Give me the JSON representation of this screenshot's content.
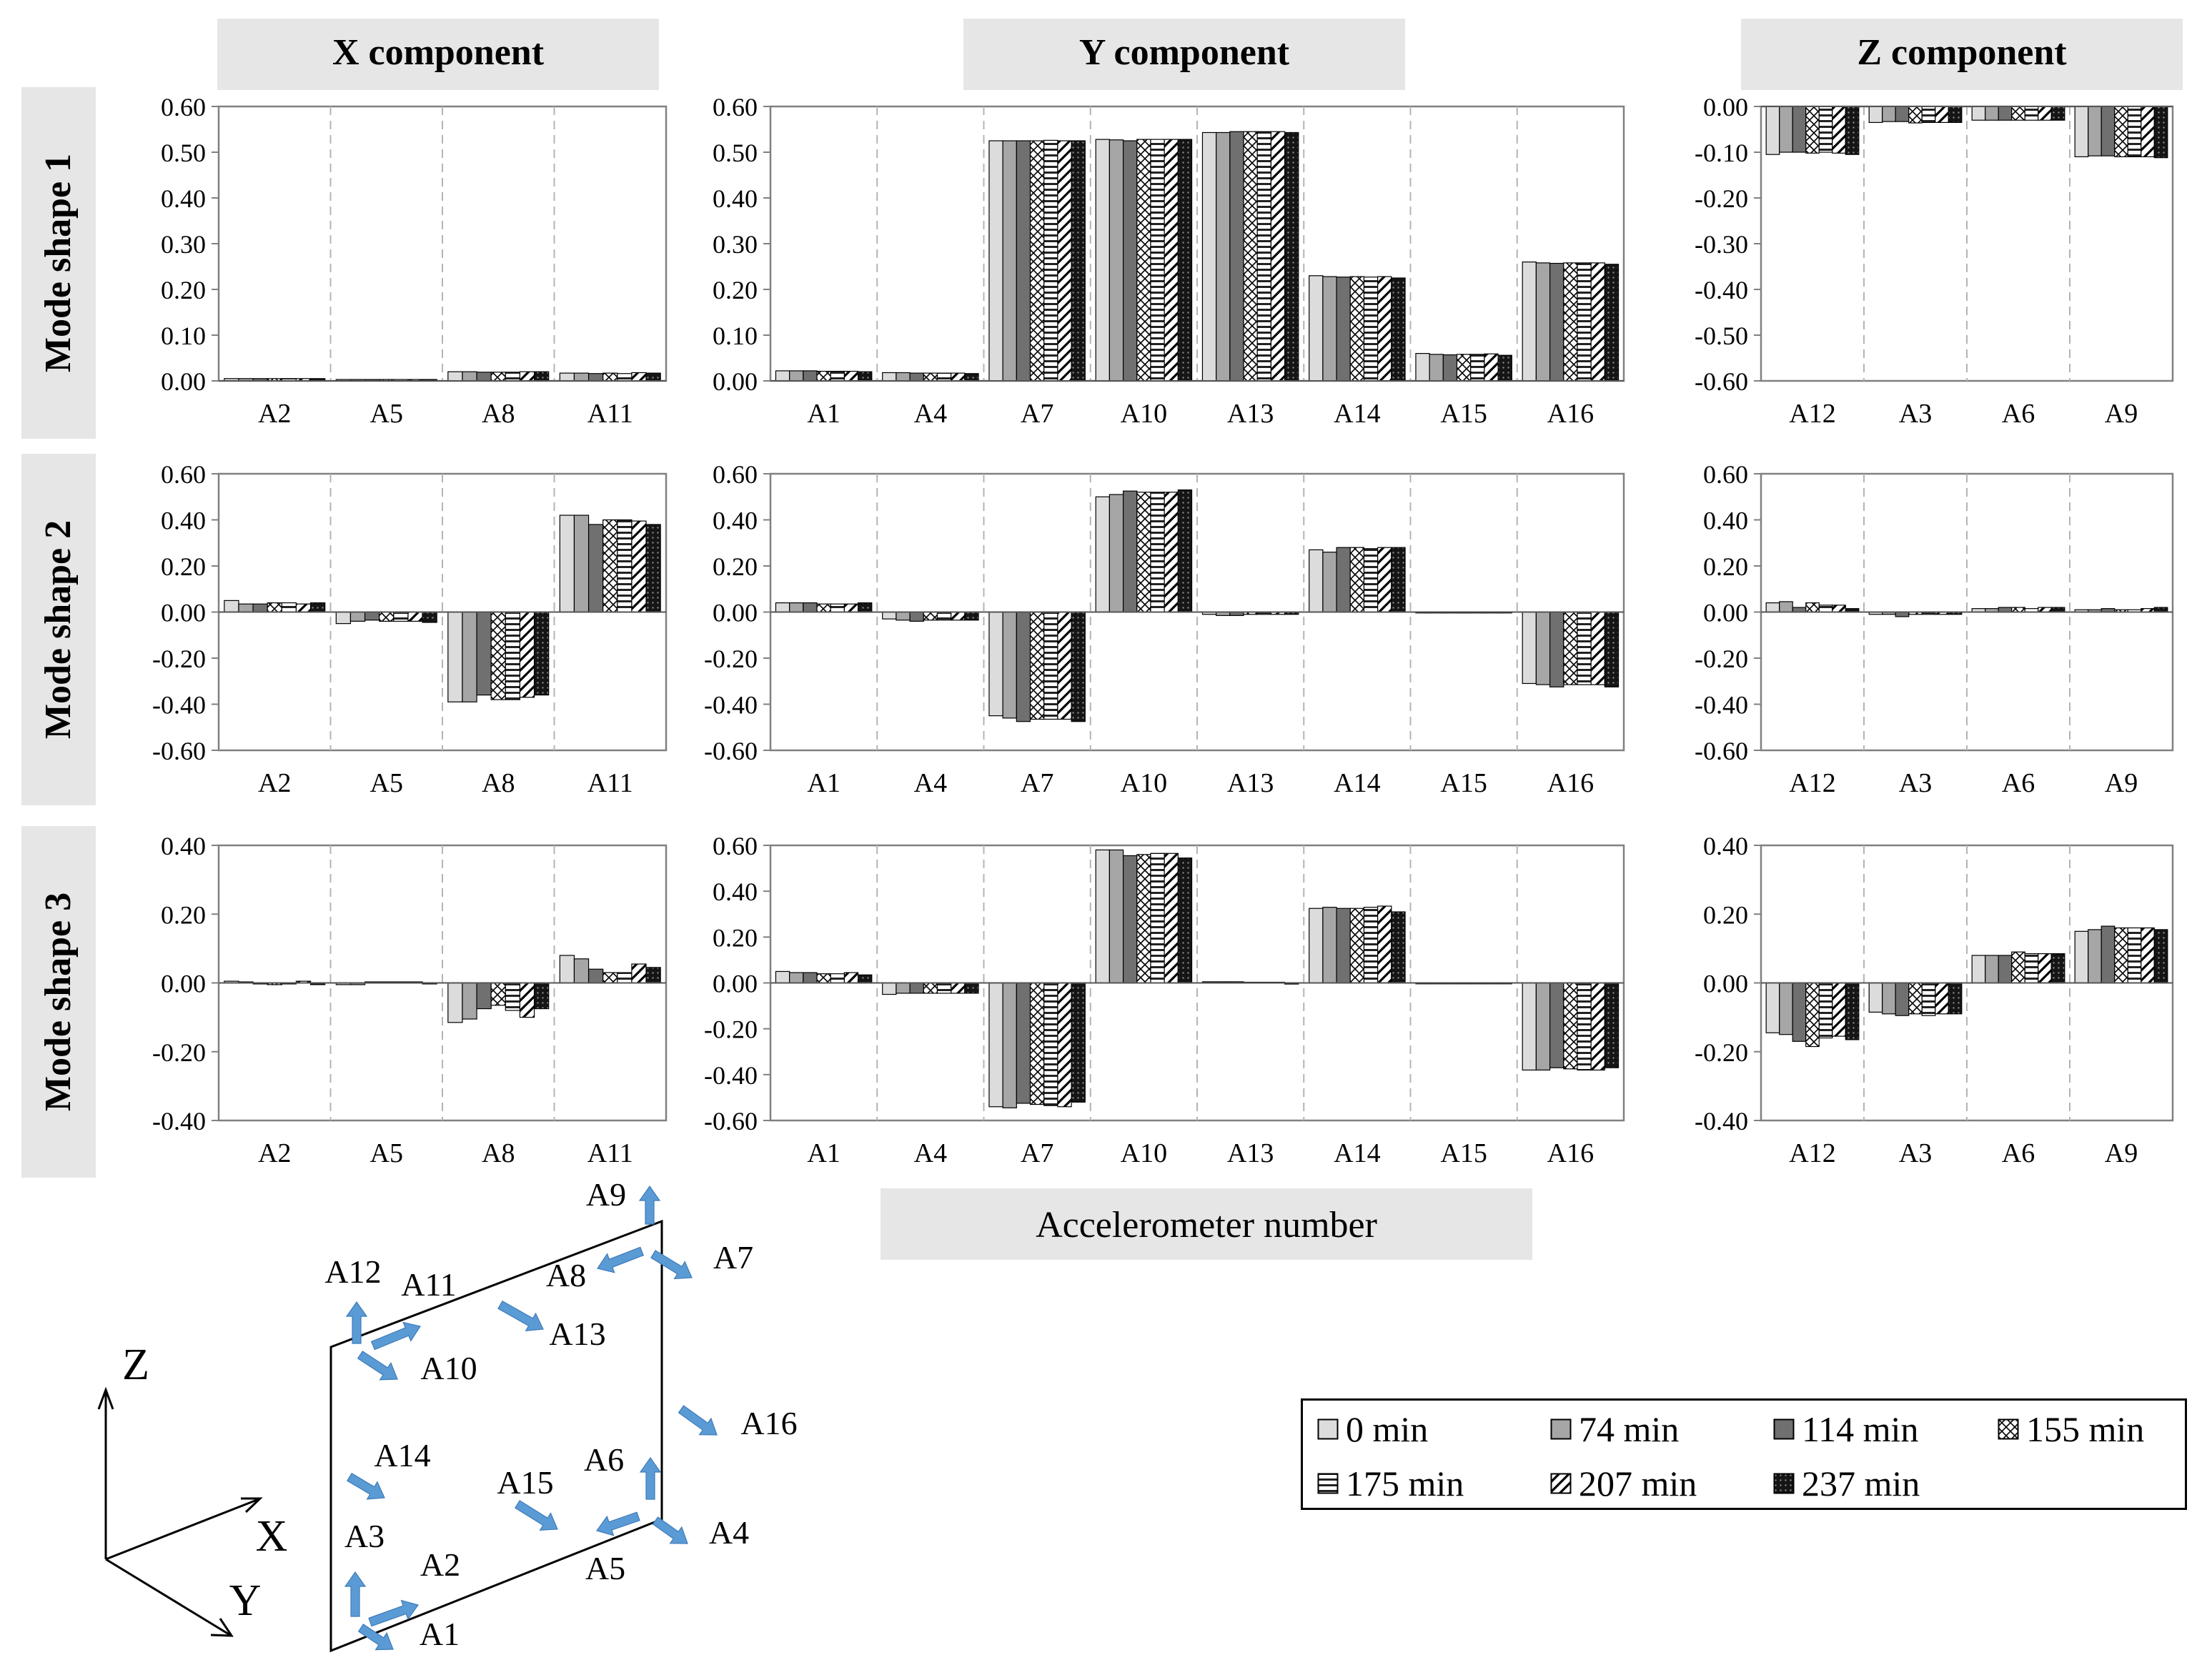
{
  "column_headers": [
    "X component",
    "Y component",
    "Z component"
  ],
  "row_headers": [
    "Mode shape 1",
    "Mode shape 2",
    "Mode shape 3"
  ],
  "xaxis_title": "Accelerometer number",
  "legend": [
    "0 min",
    "74 min",
    "114 min",
    "155 min",
    "175 min",
    "207 min",
    "237 min"
  ],
  "colors": {
    "header_bg": "#e6e6e6",
    "bar_fill": [
      "#dcdcdc",
      "#a6a6a6",
      "#707070",
      "#ffffff",
      "#ffffff",
      "#ffffff",
      "#151515"
    ],
    "arrow": "#5b9bd5",
    "frame": "#808080",
    "divider": "#b4b4b4"
  },
  "chart_data": [
    {
      "type": "bar",
      "title": "Mode shape 1 - X component",
      "categories": [
        "A2",
        "A5",
        "A8",
        "A11"
      ],
      "ylim": [
        0,
        0.6
      ],
      "yticks": [
        "0.00",
        "0.10",
        "0.20",
        "0.30",
        "0.40",
        "0.50",
        "0.60"
      ],
      "series": [
        {
          "name": "0 min",
          "values": [
            0.005,
            0.003,
            0.02,
            0.017
          ]
        },
        {
          "name": "74 min",
          "values": [
            0.005,
            0.003,
            0.02,
            0.017
          ]
        },
        {
          "name": "114 min",
          "values": [
            0.005,
            0.003,
            0.019,
            0.016
          ]
        },
        {
          "name": "155 min",
          "values": [
            0.005,
            0.003,
            0.019,
            0.017
          ]
        },
        {
          "name": "175 min",
          "values": [
            0.005,
            0.003,
            0.019,
            0.016
          ]
        },
        {
          "name": "207 min",
          "values": [
            0.005,
            0.003,
            0.02,
            0.018
          ]
        },
        {
          "name": "237 min",
          "values": [
            0.005,
            0.003,
            0.02,
            0.017
          ]
        }
      ]
    },
    {
      "type": "bar",
      "title": "Mode shape 1 - Y component",
      "categories": [
        "A1",
        "A4",
        "A7",
        "A10",
        "A13",
        "A14",
        "A15",
        "A16"
      ],
      "ylim": [
        0,
        0.6
      ],
      "yticks": [
        "0.00",
        "0.10",
        "0.20",
        "0.30",
        "0.40",
        "0.50",
        "0.60"
      ],
      "series": [
        {
          "name": "0 min",
          "values": [
            0.022,
            0.018,
            0.525,
            0.528,
            0.543,
            0.23,
            0.06,
            0.26
          ]
        },
        {
          "name": "74 min",
          "values": [
            0.022,
            0.018,
            0.525,
            0.527,
            0.543,
            0.228,
            0.058,
            0.258
          ]
        },
        {
          "name": "114 min",
          "values": [
            0.022,
            0.017,
            0.525,
            0.525,
            0.545,
            0.227,
            0.057,
            0.257
          ]
        },
        {
          "name": "155 min",
          "values": [
            0.021,
            0.017,
            0.525,
            0.528,
            0.545,
            0.228,
            0.058,
            0.258
          ]
        },
        {
          "name": "175 min",
          "values": [
            0.021,
            0.017,
            0.526,
            0.528,
            0.545,
            0.227,
            0.058,
            0.258
          ]
        },
        {
          "name": "207 min",
          "values": [
            0.021,
            0.017,
            0.525,
            0.528,
            0.545,
            0.228,
            0.059,
            0.258
          ]
        },
        {
          "name": "237 min",
          "values": [
            0.02,
            0.016,
            0.525,
            0.528,
            0.543,
            0.225,
            0.056,
            0.255
          ]
        }
      ]
    },
    {
      "type": "bar",
      "title": "Mode shape 1 - Z component",
      "categories": [
        "A12",
        "A3",
        "A6",
        "A9"
      ],
      "ylim": [
        -0.6,
        0
      ],
      "yticks": [
        "-0.60",
        "-0.50",
        "-0.40",
        "-0.30",
        "-0.20",
        "-0.10",
        "0.00"
      ],
      "series": [
        {
          "name": "0 min",
          "values": [
            -0.105,
            -0.035,
            -0.03,
            -0.11
          ]
        },
        {
          "name": "74 min",
          "values": [
            -0.1,
            -0.033,
            -0.03,
            -0.108
          ]
        },
        {
          "name": "114 min",
          "values": [
            -0.1,
            -0.033,
            -0.03,
            -0.108
          ]
        },
        {
          "name": "155 min",
          "values": [
            -0.102,
            -0.036,
            -0.03,
            -0.11
          ]
        },
        {
          "name": "175 min",
          "values": [
            -0.1,
            -0.035,
            -0.03,
            -0.11
          ]
        },
        {
          "name": "207 min",
          "values": [
            -0.102,
            -0.035,
            -0.03,
            -0.11
          ]
        },
        {
          "name": "237 min",
          "values": [
            -0.105,
            -0.035,
            -0.03,
            -0.112
          ]
        }
      ]
    },
    {
      "type": "bar",
      "title": "Mode shape 2 - X component",
      "categories": [
        "A2",
        "A5",
        "A8",
        "A11"
      ],
      "ylim": [
        -0.6,
        0.6
      ],
      "yticks": [
        "-0.60",
        "-0.40",
        "-0.20",
        "0.00",
        "0.20",
        "0.40",
        "0.60"
      ],
      "series": [
        {
          "name": "0 min",
          "values": [
            0.05,
            -0.05,
            -0.39,
            0.42
          ]
        },
        {
          "name": "74 min",
          "values": [
            0.035,
            -0.04,
            -0.39,
            0.42
          ]
        },
        {
          "name": "114 min",
          "values": [
            0.035,
            -0.035,
            -0.36,
            0.38
          ]
        },
        {
          "name": "155 min",
          "values": [
            0.04,
            -0.04,
            -0.38,
            0.4
          ]
        },
        {
          "name": "175 min",
          "values": [
            0.04,
            -0.04,
            -0.38,
            0.4
          ]
        },
        {
          "name": "207 min",
          "values": [
            0.035,
            -0.04,
            -0.37,
            0.395
          ]
        },
        {
          "name": "237 min",
          "values": [
            0.04,
            -0.045,
            -0.36,
            0.38
          ]
        }
      ]
    },
    {
      "type": "bar",
      "title": "Mode shape 2 - Y component",
      "categories": [
        "A1",
        "A4",
        "A7",
        "A10",
        "A13",
        "A14",
        "A15",
        "A16"
      ],
      "ylim": [
        -0.6,
        0.6
      ],
      "yticks": [
        "-0.60",
        "-0.40",
        "-0.20",
        "0.00",
        "0.20",
        "0.40",
        "0.60"
      ],
      "series": [
        {
          "name": "0 min",
          "values": [
            0.04,
            -0.03,
            -0.45,
            0.5,
            -0.01,
            0.27,
            -0.004,
            -0.31
          ]
        },
        {
          "name": "74 min",
          "values": [
            0.04,
            -0.035,
            -0.46,
            0.51,
            -0.015,
            0.26,
            -0.004,
            -0.315
          ]
        },
        {
          "name": "114 min",
          "values": [
            0.04,
            -0.04,
            -0.475,
            0.525,
            -0.015,
            0.28,
            -0.004,
            -0.325
          ]
        },
        {
          "name": "155 min",
          "values": [
            0.035,
            -0.035,
            -0.465,
            0.52,
            -0.01,
            0.28,
            -0.004,
            -0.315
          ]
        },
        {
          "name": "175 min",
          "values": [
            0.035,
            -0.035,
            -0.465,
            0.52,
            -0.01,
            0.275,
            -0.004,
            -0.315
          ]
        },
        {
          "name": "207 min",
          "values": [
            0.035,
            -0.035,
            -0.465,
            0.52,
            -0.01,
            0.28,
            -0.004,
            -0.315
          ]
        },
        {
          "name": "237 min",
          "values": [
            0.04,
            -0.035,
            -0.475,
            0.53,
            -0.01,
            0.28,
            -0.004,
            -0.325
          ]
        }
      ]
    },
    {
      "type": "bar",
      "title": "Mode shape 2 - Z component",
      "categories": [
        "A12",
        "A3",
        "A6",
        "A9"
      ],
      "ylim": [
        -0.6,
        0.6
      ],
      "yticks": [
        "-0.60",
        "-0.40",
        "-0.20",
        "0.00",
        "0.20",
        "0.40",
        "0.60"
      ],
      "series": [
        {
          "name": "0 min",
          "values": [
            0.04,
            -0.01,
            0.015,
            0.01
          ]
        },
        {
          "name": "74 min",
          "values": [
            0.045,
            -0.01,
            0.015,
            0.01
          ]
        },
        {
          "name": "114 min",
          "values": [
            0.02,
            -0.02,
            0.02,
            0.015
          ]
        },
        {
          "name": "155 min",
          "values": [
            0.04,
            -0.01,
            0.02,
            0.01
          ]
        },
        {
          "name": "175 min",
          "values": [
            0.03,
            -0.01,
            0.015,
            0.01
          ]
        },
        {
          "name": "207 min",
          "values": [
            0.03,
            -0.01,
            0.02,
            0.015
          ]
        },
        {
          "name": "237 min",
          "values": [
            0.015,
            -0.01,
            0.02,
            0.02
          ]
        }
      ]
    },
    {
      "type": "bar",
      "title": "Mode shape 3 - X component",
      "categories": [
        "A2",
        "A5",
        "A8",
        "A11"
      ],
      "ylim": [
        -0.4,
        0.4
      ],
      "yticks": [
        "-0.40",
        "-0.20",
        "0.00",
        "0.20",
        "0.40"
      ],
      "series": [
        {
          "name": "0 min",
          "values": [
            0.005,
            -0.005,
            -0.115,
            0.08
          ]
        },
        {
          "name": "74 min",
          "values": [
            0.003,
            -0.005,
            -0.105,
            0.07
          ]
        },
        {
          "name": "114 min",
          "values": [
            -0.003,
            0.003,
            -0.075,
            0.04
          ]
        },
        {
          "name": "155 min",
          "values": [
            -0.005,
            0.003,
            -0.065,
            0.03
          ]
        },
        {
          "name": "175 min",
          "values": [
            -0.003,
            0.003,
            -0.08,
            0.03
          ]
        },
        {
          "name": "207 min",
          "values": [
            0.005,
            0.003,
            -0.1,
            0.055
          ]
        },
        {
          "name": "237 min",
          "values": [
            -0.005,
            -0.003,
            -0.075,
            0.045
          ]
        }
      ]
    },
    {
      "type": "bar",
      "title": "Mode shape 3 - Y component",
      "categories": [
        "A1",
        "A4",
        "A7",
        "A10",
        "A13",
        "A14",
        "A15",
        "A16"
      ],
      "ylim": [
        -0.6,
        0.6
      ],
      "yticks": [
        "-0.60",
        "-0.40",
        "-0.20",
        "0.00",
        "0.20",
        "0.40",
        "0.60"
      ],
      "series": [
        {
          "name": "0 min",
          "values": [
            0.05,
            -0.05,
            -0.54,
            0.58,
            0.005,
            0.325,
            -0.004,
            -0.38
          ]
        },
        {
          "name": "74 min",
          "values": [
            0.045,
            -0.045,
            -0.545,
            0.58,
            0.005,
            0.33,
            -0.004,
            -0.38
          ]
        },
        {
          "name": "114 min",
          "values": [
            0.045,
            -0.045,
            -0.525,
            0.555,
            0.005,
            0.325,
            -0.004,
            -0.37
          ]
        },
        {
          "name": "155 min",
          "values": [
            0.04,
            -0.045,
            -0.53,
            0.56,
            0.003,
            0.325,
            -0.004,
            -0.375
          ]
        },
        {
          "name": "175 min",
          "values": [
            0.04,
            -0.045,
            -0.535,
            0.565,
            0.003,
            0.33,
            -0.004,
            -0.38
          ]
        },
        {
          "name": "207 min",
          "values": [
            0.045,
            -0.045,
            -0.54,
            0.565,
            0.003,
            0.335,
            -0.004,
            -0.38
          ]
        },
        {
          "name": "237 min",
          "values": [
            0.035,
            -0.045,
            -0.52,
            0.545,
            -0.005,
            0.31,
            -0.004,
            -0.37
          ]
        }
      ]
    },
    {
      "type": "bar",
      "title": "Mode shape 3 - Z component",
      "categories": [
        "A12",
        "A3",
        "A6",
        "A9"
      ],
      "ylim": [
        -0.4,
        0.4
      ],
      "yticks": [
        "-0.40",
        "-0.20",
        "0.00",
        "0.20",
        "0.40"
      ],
      "series": [
        {
          "name": "0 min",
          "values": [
            -0.145,
            -0.085,
            0.08,
            0.15
          ]
        },
        {
          "name": "74 min",
          "values": [
            -0.15,
            -0.09,
            0.08,
            0.155
          ]
        },
        {
          "name": "114 min",
          "values": [
            -0.17,
            -0.095,
            0.08,
            0.165
          ]
        },
        {
          "name": "155 min",
          "values": [
            -0.185,
            -0.09,
            0.09,
            0.16
          ]
        },
        {
          "name": "175 min",
          "values": [
            -0.16,
            -0.095,
            0.085,
            0.16
          ]
        },
        {
          "name": "207 min",
          "values": [
            -0.155,
            -0.09,
            0.085,
            0.16
          ]
        },
        {
          "name": "237 min",
          "values": [
            -0.165,
            -0.09,
            0.085,
            0.155
          ]
        }
      ]
    }
  ],
  "diagram": {
    "axes": {
      "z": "Z",
      "x": "X",
      "y": "Y"
    },
    "sensors": [
      "A1",
      "A2",
      "A3",
      "A4",
      "A5",
      "A6",
      "A7",
      "A8",
      "A9",
      "A10",
      "A11",
      "A12",
      "A13",
      "A14",
      "A15",
      "A16"
    ]
  }
}
